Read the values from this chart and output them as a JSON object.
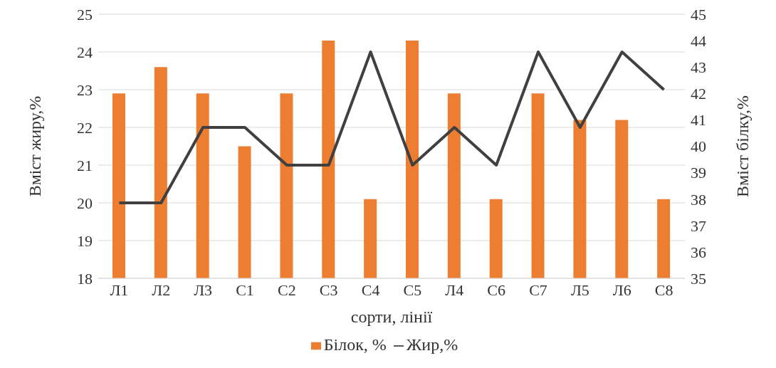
{
  "chart_data": {
    "type": "bar",
    "xlabel": "сорти, лінії",
    "ylabel": "Вміст жиру,%",
    "y2label": "Вміст білку,%",
    "categories": [
      "Л1",
      "Л2",
      "Л3",
      "С1",
      "С2",
      "С3",
      "С4",
      "С5",
      "Л4",
      "С6",
      "С7",
      "Л5",
      "Л6",
      "С8"
    ],
    "series": [
      {
        "name": "Білок, %",
        "axis": "y2",
        "color": "#ed7d31",
        "values": [
          42,
          43,
          42,
          40,
          42,
          44,
          38,
          44,
          42,
          38,
          42,
          41,
          41,
          38
        ]
      },
      {
        "name": "Жир,%",
        "type": "line",
        "axis": "y",
        "color": "#404040",
        "values": [
          20,
          20,
          22,
          22,
          21,
          21,
          24,
          21,
          22,
          21,
          24,
          22,
          24,
          23
        ]
      }
    ],
    "ylim": [
      18,
      25
    ],
    "yticks": [
      18,
      19,
      20,
      21,
      22,
      23,
      24,
      25
    ],
    "y2lim": [
      35,
      45
    ],
    "y2ticks": [
      35,
      36,
      37,
      38,
      39,
      40,
      41,
      42,
      43,
      44,
      45
    ],
    "grid": "y",
    "legend": "bottom",
    "marker": "none"
  }
}
